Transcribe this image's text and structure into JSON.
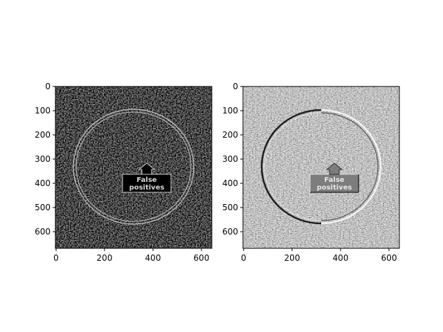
{
  "figure": {
    "panels": [
      {
        "id": "left",
        "kind": "edge-magnitude",
        "xticks": [
          "0",
          "200",
          "400",
          "600"
        ],
        "yticks": [
          "0",
          "100",
          "200",
          "300",
          "400",
          "500",
          "600"
        ],
        "x_range": [
          0,
          640
        ],
        "y_range": [
          0,
          670
        ],
        "annotation_lines": [
          "False",
          "positives"
        ]
      },
      {
        "id": "right",
        "kind": "emboss",
        "xticks": [
          "0",
          "200",
          "400",
          "600"
        ],
        "yticks": [
          "0",
          "100",
          "200",
          "300",
          "400",
          "500",
          "600"
        ],
        "x_range": [
          0,
          640
        ],
        "y_range": [
          0,
          670
        ],
        "annotation_lines": [
          "False",
          "positives"
        ]
      }
    ],
    "colors": {
      "left_background": "#0b0b0b",
      "right_background": "#8a8a8a",
      "axes_frame": "#000000",
      "page_background": "#ffffff"
    }
  }
}
